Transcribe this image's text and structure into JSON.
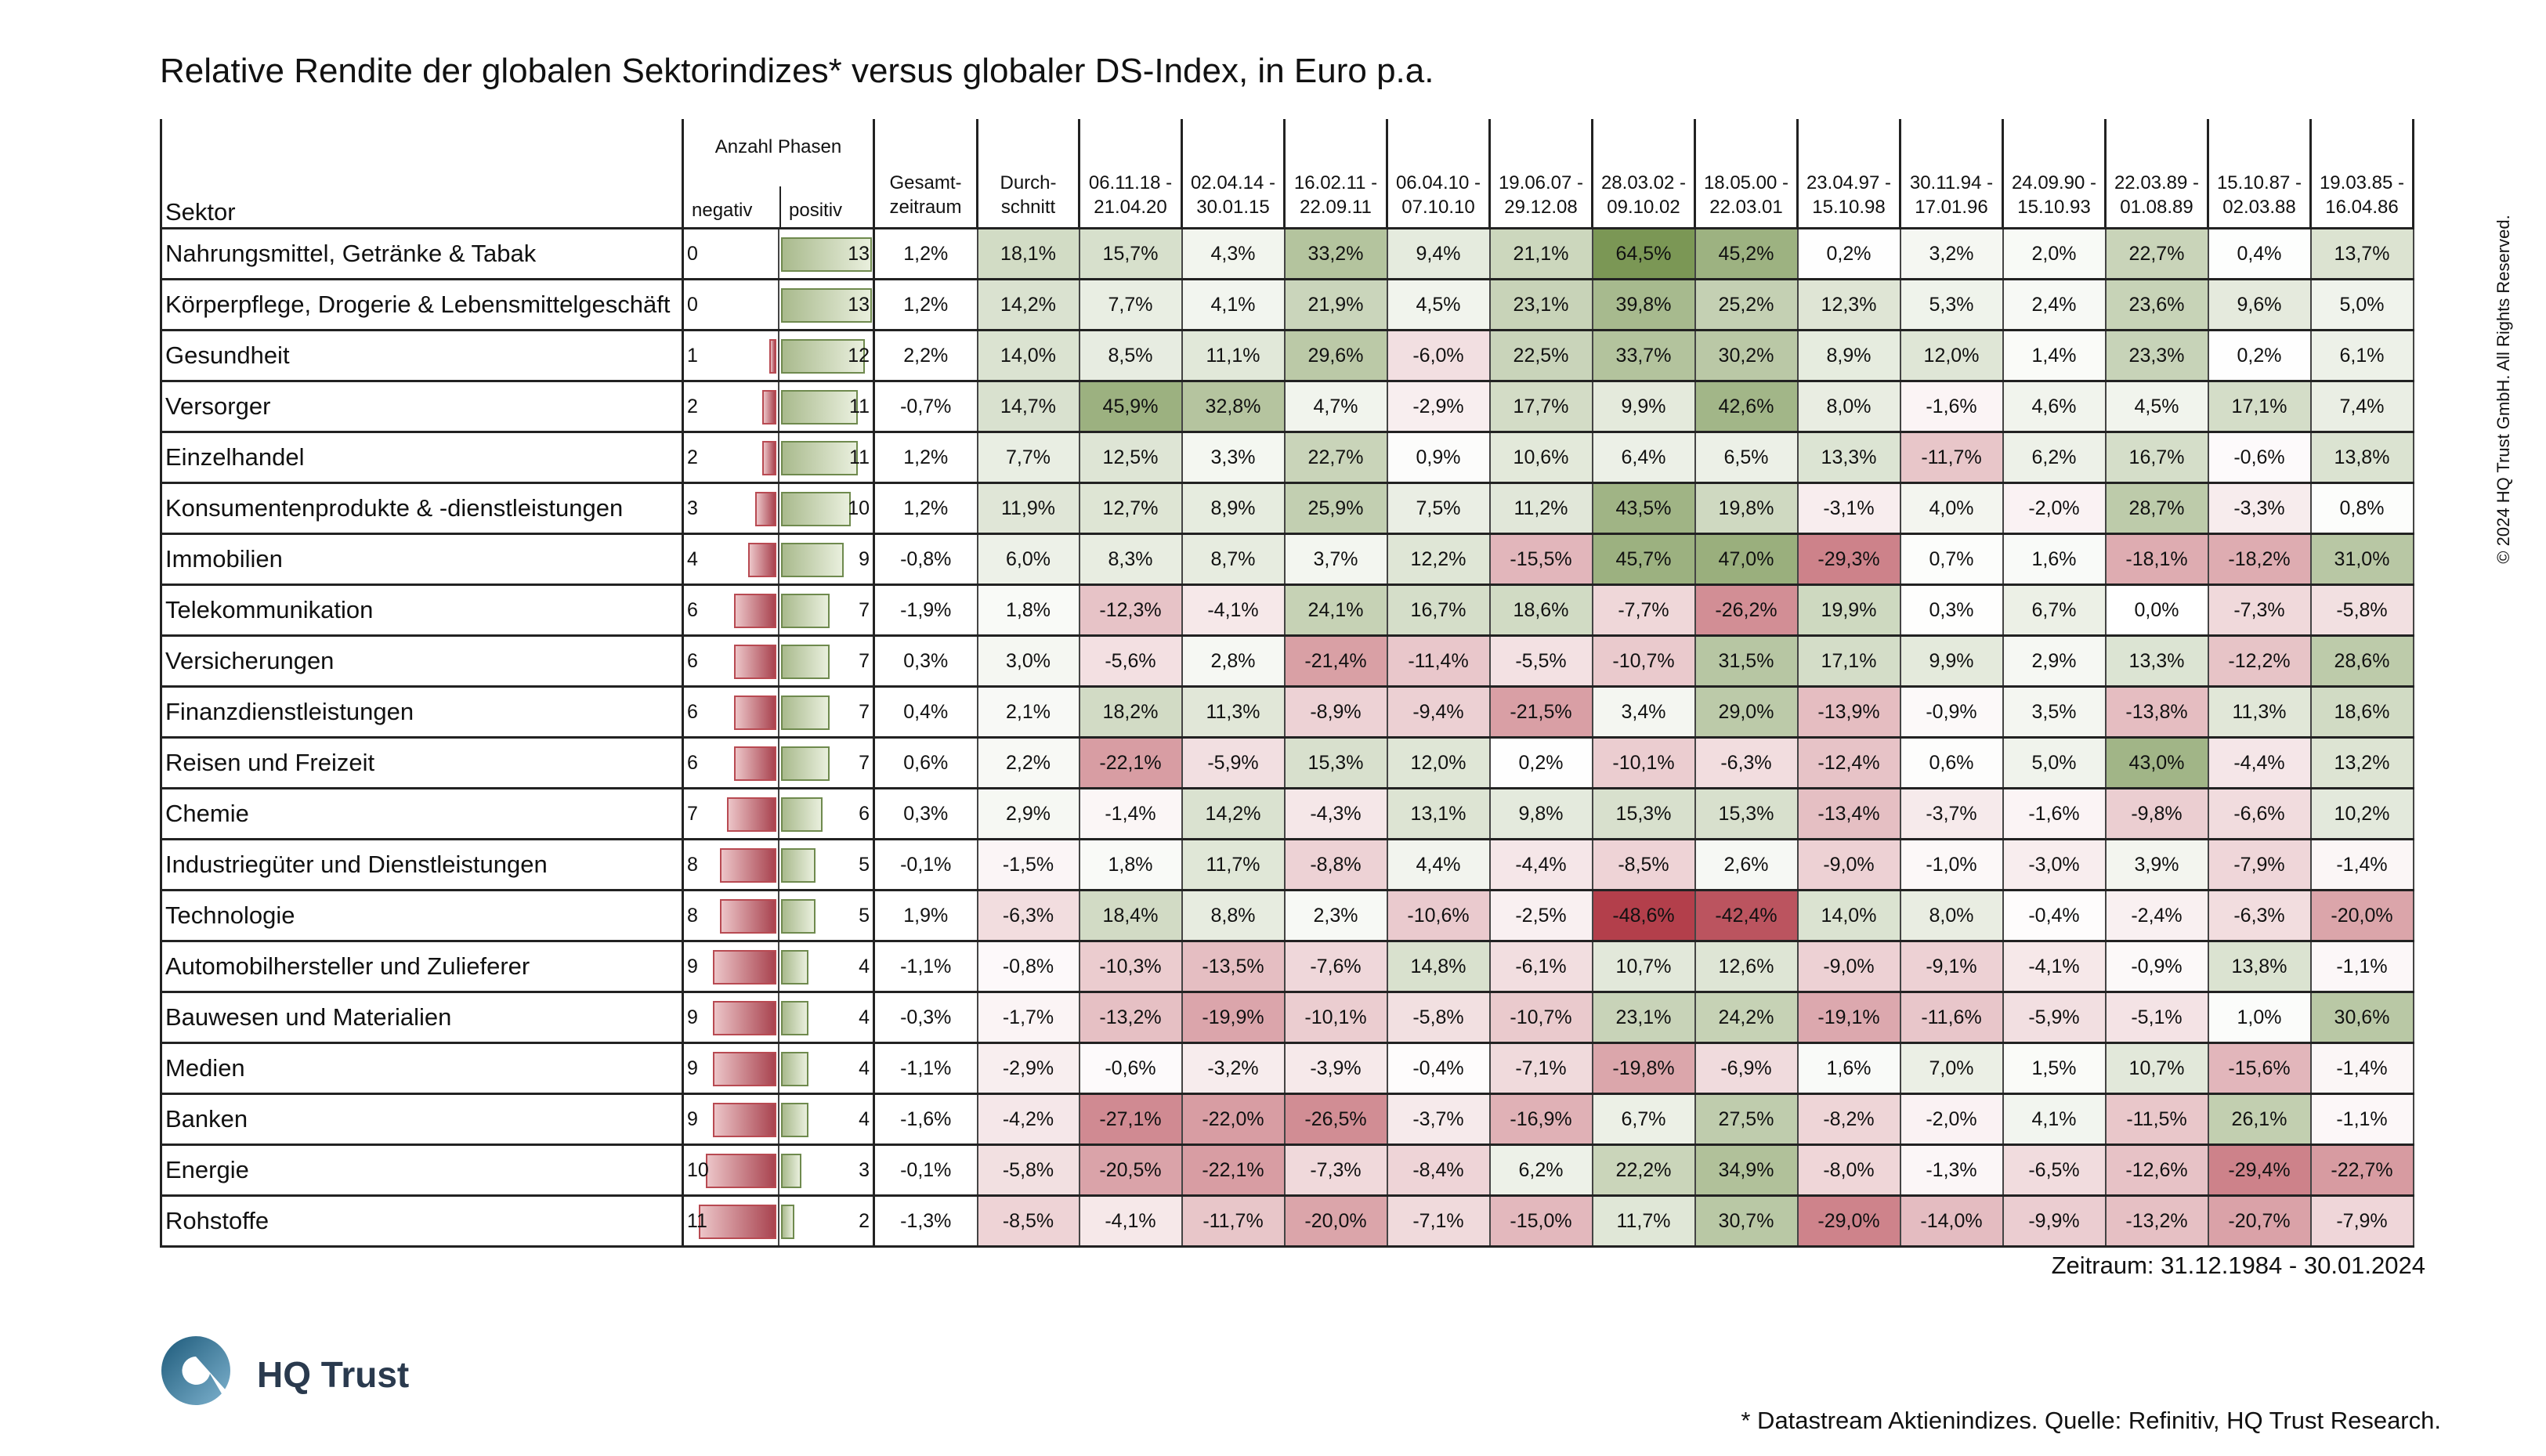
{
  "title": "Relative Rendite der globalen Sektorindizes* versus globaler DS-Index, in Euro p.a.",
  "headers": {
    "sector": "Sektor",
    "phases": "Anzahl Phasen",
    "negativ": "negativ",
    "positiv": "positiv",
    "gesamt_1": "Gesamt-",
    "gesamt_2": "zeitraum",
    "durch_1": "Durch-",
    "durch_2": "schnitt"
  },
  "periods": [
    {
      "from": "06.11.18 -",
      "to": "21.04.20"
    },
    {
      "from": "02.04.14 -",
      "to": "30.01.15"
    },
    {
      "from": "16.02.11 -",
      "to": "22.09.11"
    },
    {
      "from": "06.04.10 -",
      "to": "07.10.10"
    },
    {
      "from": "19.06.07 -",
      "to": "29.12.08"
    },
    {
      "from": "28.03.02 -",
      "to": "09.10.02"
    },
    {
      "from": "18.05.00 -",
      "to": "22.03.01"
    },
    {
      "from": "23.04.97 -",
      "to": "15.10.98"
    },
    {
      "from": "30.11.94 -",
      "to": "17.01.96"
    },
    {
      "from": "24.09.90 -",
      "to": "15.10.93"
    },
    {
      "from": "22.03.89 -",
      "to": "01.08.89"
    },
    {
      "from": "15.10.87 -",
      "to": "02.03.88"
    },
    {
      "from": "19.03.85 -",
      "to": "16.04.86"
    }
  ],
  "chart_data": {
    "type": "table",
    "title": "Relative Rendite der globalen Sektorindizes* versus globaler DS-Index, in Euro p.a.",
    "max_phases": 13,
    "rows": [
      {
        "sector": "Nahrungsmittel, Getränke & Tabak",
        "neg": 0,
        "pos": 13,
        "gesamt": "1,2%",
        "avg": "18,1%",
        "vals": [
          "15,7%",
          "4,3%",
          "33,2%",
          "9,4%",
          "21,1%",
          "64,5%",
          "45,2%",
          "0,2%",
          "3,2%",
          "2,0%",
          "22,7%",
          "0,4%",
          "13,7%"
        ]
      },
      {
        "sector": "Körperpflege, Drogerie & Lebensmittelgeschäft",
        "neg": 0,
        "pos": 13,
        "gesamt": "1,2%",
        "avg": "14,2%",
        "vals": [
          "7,7%",
          "4,1%",
          "21,9%",
          "4,5%",
          "23,1%",
          "39,8%",
          "25,2%",
          "12,3%",
          "5,3%",
          "2,4%",
          "23,6%",
          "9,6%",
          "5,0%"
        ]
      },
      {
        "sector": "Gesundheit",
        "neg": 1,
        "pos": 12,
        "gesamt": "2,2%",
        "avg": "14,0%",
        "vals": [
          "8,5%",
          "11,1%",
          "29,6%",
          "-6,0%",
          "22,5%",
          "33,7%",
          "30,2%",
          "8,9%",
          "12,0%",
          "1,4%",
          "23,3%",
          "0,2%",
          "6,1%"
        ]
      },
      {
        "sector": "Versorger",
        "neg": 2,
        "pos": 11,
        "gesamt": "-0,7%",
        "avg": "14,7%",
        "vals": [
          "45,9%",
          "32,8%",
          "4,7%",
          "-2,9%",
          "17,7%",
          "9,9%",
          "42,6%",
          "8,0%",
          "-1,6%",
          "4,6%",
          "4,5%",
          "17,1%",
          "7,4%"
        ]
      },
      {
        "sector": "Einzelhandel",
        "neg": 2,
        "pos": 11,
        "gesamt": "1,2%",
        "avg": "7,7%",
        "vals": [
          "12,5%",
          "3,3%",
          "22,7%",
          "0,9%",
          "10,6%",
          "6,4%",
          "6,5%",
          "13,3%",
          "-11,7%",
          "6,2%",
          "16,7%",
          "-0,6%",
          "13,8%"
        ]
      },
      {
        "sector": "Konsumentenprodukte & -dienstleistungen",
        "neg": 3,
        "pos": 10,
        "gesamt": "1,2%",
        "avg": "11,9%",
        "vals": [
          "12,7%",
          "8,9%",
          "25,9%",
          "7,5%",
          "11,2%",
          "43,5%",
          "19,8%",
          "-3,1%",
          "4,0%",
          "-2,0%",
          "28,7%",
          "-3,3%",
          "0,8%"
        ]
      },
      {
        "sector": "Immobilien",
        "neg": 4,
        "pos": 9,
        "gesamt": "-0,8%",
        "avg": "6,0%",
        "vals": [
          "8,3%",
          "8,7%",
          "3,7%",
          "12,2%",
          "-15,5%",
          "45,7%",
          "47,0%",
          "-29,3%",
          "0,7%",
          "1,6%",
          "-18,1%",
          "-18,2%",
          "31,0%"
        ]
      },
      {
        "sector": "Telekommunikation",
        "neg": 6,
        "pos": 7,
        "gesamt": "-1,9%",
        "avg": "1,8%",
        "vals": [
          "-12,3%",
          "-4,1%",
          "24,1%",
          "16,7%",
          "18,6%",
          "-7,7%",
          "-26,2%",
          "19,9%",
          "0,3%",
          "6,7%",
          "0,0%",
          "-7,3%",
          "-5,8%"
        ]
      },
      {
        "sector": "Versicherungen",
        "neg": 6,
        "pos": 7,
        "gesamt": "0,3%",
        "avg": "3,0%",
        "vals": [
          "-5,6%",
          "2,8%",
          "-21,4%",
          "-11,4%",
          "-5,5%",
          "-10,7%",
          "31,5%",
          "17,1%",
          "9,9%",
          "2,9%",
          "13,3%",
          "-12,2%",
          "28,6%"
        ]
      },
      {
        "sector": "Finanzdienstleistungen",
        "neg": 6,
        "pos": 7,
        "gesamt": "0,4%",
        "avg": "2,1%",
        "vals": [
          "18,2%",
          "11,3%",
          "-8,9%",
          "-9,4%",
          "-21,5%",
          "3,4%",
          "29,0%",
          "-13,9%",
          "-0,9%",
          "3,5%",
          "-13,8%",
          "11,3%",
          "18,6%"
        ]
      },
      {
        "sector": "Reisen und Freizeit",
        "neg": 6,
        "pos": 7,
        "gesamt": "0,6%",
        "avg": "2,2%",
        "vals": [
          "-22,1%",
          "-5,9%",
          "15,3%",
          "12,0%",
          "0,2%",
          "-10,1%",
          "-6,3%",
          "-12,4%",
          "0,6%",
          "5,0%",
          "43,0%",
          "-4,4%",
          "13,2%"
        ]
      },
      {
        "sector": "Chemie",
        "neg": 7,
        "pos": 6,
        "gesamt": "0,3%",
        "avg": "2,9%",
        "vals": [
          "-1,4%",
          "14,2%",
          "-4,3%",
          "13,1%",
          "9,8%",
          "15,3%",
          "15,3%",
          "-13,4%",
          "-3,7%",
          "-1,6%",
          "-9,8%",
          "-6,6%",
          "10,2%"
        ]
      },
      {
        "sector": "Industriegüter und Dienstleistungen",
        "neg": 8,
        "pos": 5,
        "gesamt": "-0,1%",
        "avg": "-1,5%",
        "vals": [
          "1,8%",
          "11,7%",
          "-8,8%",
          "4,4%",
          "-4,4%",
          "-8,5%",
          "2,6%",
          "-9,0%",
          "-1,0%",
          "-3,0%",
          "3,9%",
          "-7,9%",
          "-1,4%"
        ]
      },
      {
        "sector": "Technologie",
        "neg": 8,
        "pos": 5,
        "gesamt": "1,9%",
        "avg": "-6,3%",
        "vals": [
          "18,4%",
          "8,8%",
          "2,3%",
          "-10,6%",
          "-2,5%",
          "-48,6%",
          "-42,4%",
          "14,0%",
          "8,0%",
          "-0,4%",
          "-2,4%",
          "-6,3%",
          "-20,0%"
        ]
      },
      {
        "sector": "Automobilhersteller und Zulieferer",
        "neg": 9,
        "pos": 4,
        "gesamt": "-1,1%",
        "avg": "-0,8%",
        "vals": [
          "-10,3%",
          "-13,5%",
          "-7,6%",
          "14,8%",
          "-6,1%",
          "10,7%",
          "12,6%",
          "-9,0%",
          "-9,1%",
          "-4,1%",
          "-0,9%",
          "13,8%",
          "-1,1%"
        ]
      },
      {
        "sector": "Bauwesen und Materialien",
        "neg": 9,
        "pos": 4,
        "gesamt": "-0,3%",
        "avg": "-1,7%",
        "vals": [
          "-13,2%",
          "-19,9%",
          "-10,1%",
          "-5,8%",
          "-10,7%",
          "23,1%",
          "24,2%",
          "-19,1%",
          "-11,6%",
          "-5,9%",
          "-5,1%",
          "1,0%",
          "30,6%"
        ]
      },
      {
        "sector": "Medien",
        "neg": 9,
        "pos": 4,
        "gesamt": "-1,1%",
        "avg": "-2,9%",
        "vals": [
          "-0,6%",
          "-3,2%",
          "-3,9%",
          "-0,4%",
          "-7,1%",
          "-19,8%",
          "-6,9%",
          "1,6%",
          "7,0%",
          "1,5%",
          "10,7%",
          "-15,6%",
          "-1,4%"
        ]
      },
      {
        "sector": "Banken",
        "neg": 9,
        "pos": 4,
        "gesamt": "-1,6%",
        "avg": "-4,2%",
        "vals": [
          "-27,1%",
          "-22,0%",
          "-26,5%",
          "-3,7%",
          "-16,9%",
          "6,7%",
          "27,5%",
          "-8,2%",
          "-2,0%",
          "4,1%",
          "-11,5%",
          "26,1%",
          "-1,1%"
        ]
      },
      {
        "sector": "Energie",
        "neg": 10,
        "pos": 3,
        "gesamt": "-0,1%",
        "avg": "-5,8%",
        "vals": [
          "-20,5%",
          "-22,1%",
          "-7,3%",
          "-8,4%",
          "6,2%",
          "22,2%",
          "34,9%",
          "-8,0%",
          "-1,3%",
          "-6,5%",
          "-12,6%",
          "-29,4%",
          "-22,7%"
        ]
      },
      {
        "sector": "Rohstoffe",
        "neg": 11,
        "pos": 2,
        "gesamt": "-1,3%",
        "avg": "-8,5%",
        "vals": [
          "-4,1%",
          "-11,7%",
          "-20,0%",
          "-7,1%",
          "-15,0%",
          "11,7%",
          "30,7%",
          "-29,0%",
          "-14,0%",
          "-9,9%",
          "-13,2%",
          "-20,7%",
          "-7,9%"
        ]
      }
    ]
  },
  "zeitraum": "Zeitraum: 31.12.1984 - 30.01.2024",
  "footnote": "* Datastream Aktienindizes. Quelle: Refinitiv, HQ Trust Research.",
  "copyright": "© 2024 HQ Trust GmbH. All Rights Reserved.",
  "logo_text": "HQ Trust",
  "colors": {
    "positive": "#7e9a58",
    "negative": "#b23a48",
    "neutral": "#ffffff"
  }
}
